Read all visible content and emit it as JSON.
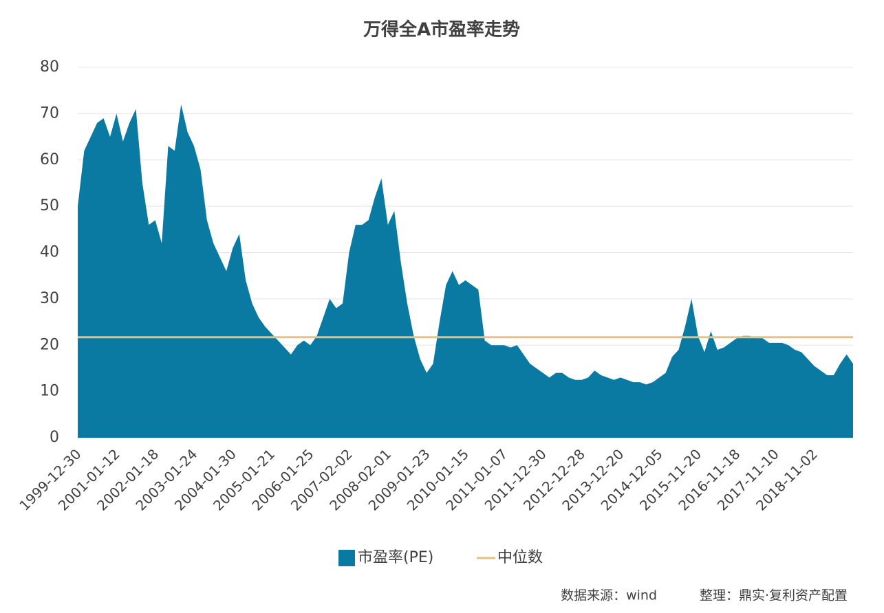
{
  "chart_data": {
    "type": "area",
    "title": "万得全A市盈率走势",
    "categories": [
      "1999-12-30",
      null,
      null,
      null,
      null,
      null,
      "2001-01-12",
      null,
      null,
      null,
      null,
      null,
      "2002-01-18",
      null,
      null,
      null,
      null,
      null,
      "2003-01-24",
      null,
      null,
      null,
      null,
      null,
      "2004-01-30",
      null,
      null,
      null,
      null,
      null,
      "2005-01-21",
      null,
      null,
      null,
      null,
      null,
      "2006-01-25",
      null,
      null,
      null,
      null,
      null,
      "2007-02-02",
      null,
      null,
      null,
      null,
      null,
      "2008-02-01",
      null,
      null,
      null,
      null,
      null,
      "2009-01-23",
      null,
      null,
      null,
      null,
      null,
      "2010-01-15",
      null,
      null,
      null,
      null,
      null,
      "2011-01-07",
      null,
      null,
      null,
      null,
      null,
      "2011-12-30",
      null,
      null,
      null,
      null,
      null,
      "2012-12-28",
      null,
      null,
      null,
      null,
      null,
      "2013-12-20",
      null,
      null,
      null,
      null,
      null,
      "2014-12-05",
      null,
      null,
      null,
      null,
      null,
      "2015-11-20",
      null,
      null,
      null,
      null,
      null,
      "2016-11-18",
      null,
      null,
      null,
      null,
      null,
      "2017-11-10",
      null,
      null,
      null,
      null,
      null,
      "2018-11-02",
      null,
      null,
      null,
      null,
      null,
      null
    ],
    "series": [
      {
        "name": "市盈率(PE)",
        "color": "#0b7aa3",
        "values": [
          50,
          62,
          65,
          68,
          69,
          65,
          70,
          64,
          68,
          71,
          55,
          46,
          47,
          42,
          63,
          62,
          72,
          66,
          63,
          58,
          47,
          42,
          39,
          36,
          41,
          44,
          34,
          29,
          26,
          24,
          22.5,
          21,
          19.5,
          18,
          20,
          21,
          20,
          22,
          26,
          30,
          28,
          29,
          40,
          46,
          46,
          47,
          52,
          56,
          46,
          49,
          38,
          29,
          22,
          17,
          14,
          16,
          25,
          33,
          36,
          33,
          34,
          33,
          32,
          21,
          20,
          20,
          20,
          19.5,
          20,
          18,
          16,
          15,
          14,
          13,
          14,
          14,
          13,
          12.5,
          12.5,
          13,
          14.5,
          13.5,
          13,
          12.5,
          13,
          12.5,
          12,
          12,
          11.5,
          12,
          13,
          14,
          17.5,
          19,
          24,
          30,
          22,
          18.5,
          23,
          19,
          19.5,
          20.5,
          21.5,
          22,
          22,
          21.5,
          21.5,
          20.5,
          20.5,
          20.5,
          20,
          19,
          18.5,
          17,
          15.5,
          14.5,
          13.5,
          13.5,
          16,
          18,
          16
        ]
      }
    ],
    "reference_line": {
      "name": "中位数",
      "value": 21.7,
      "color": "#e3c282"
    },
    "ylim": [
      0,
      80
    ],
    "yticks": [
      0,
      10,
      20,
      30,
      40,
      50,
      60,
      70,
      80
    ],
    "grid": true,
    "legend": "bottom",
    "source": "数据来源：wind",
    "credit": "整理：鼎实·复利资产配置"
  }
}
